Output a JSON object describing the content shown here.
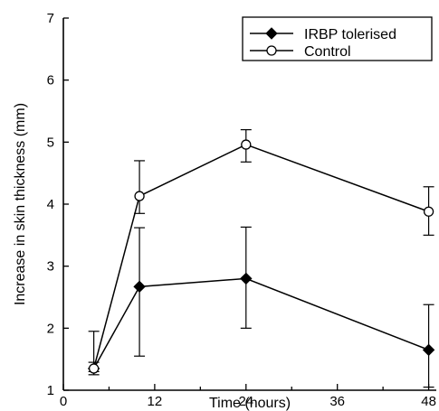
{
  "chart_data": {
    "type": "line",
    "xlabel": "Time (hours)",
    "ylabel": "Increase in skin thickness (mm)",
    "xlim": [
      0,
      49
    ],
    "ylim": [
      1,
      7
    ],
    "x_ticks": [
      0,
      12,
      24,
      36,
      48
    ],
    "x_tick_labels": [
      "0",
      "12",
      "24",
      "36",
      "48"
    ],
    "y_ticks": [
      1,
      2,
      3,
      4,
      5,
      6,
      7
    ],
    "y_tick_labels": [
      "1",
      "2",
      "3",
      "4",
      "5",
      "6",
      "7"
    ],
    "legend_position": "top-right",
    "series": [
      {
        "name": "IRBP tolerised",
        "marker": "filled-diamond",
        "color": "#000000",
        "points": [
          {
            "x": 4,
            "y": 1.35,
            "err_low": 1.3,
            "err_high": 1.45
          },
          {
            "x": 10,
            "y": 2.67,
            "err_low": 1.55,
            "err_high": 3.62
          },
          {
            "x": 24,
            "y": 2.8,
            "err_low": 2.0,
            "err_high": 3.63
          },
          {
            "x": 48,
            "y": 1.65,
            "err_low": 1.05,
            "err_high": 2.38
          }
        ]
      },
      {
        "name": "Control",
        "marker": "open-circle",
        "color": "#000000",
        "points": [
          {
            "x": 4,
            "y": 1.35,
            "err_low": 1.25,
            "err_high": 1.95
          },
          {
            "x": 10,
            "y": 4.13,
            "err_low": 3.85,
            "err_high": 4.7
          },
          {
            "x": 24,
            "y": 4.96,
            "err_low": 4.68,
            "err_high": 5.2
          },
          {
            "x": 48,
            "y": 3.88,
            "err_low": 3.5,
            "err_high": 4.28
          }
        ]
      }
    ]
  }
}
